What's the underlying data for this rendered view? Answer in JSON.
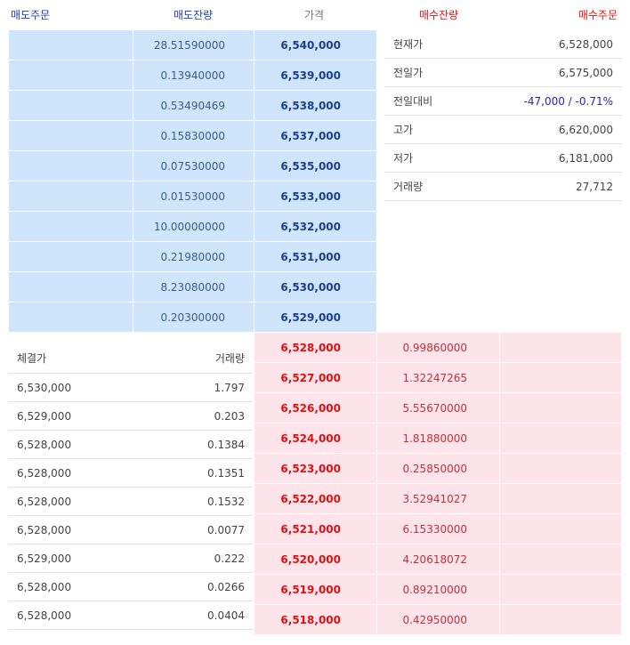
{
  "headers": {
    "sell_order": "매도주문",
    "sell_qty": "매도잔량",
    "price": "가격",
    "buy_qty": "매수잔량",
    "buy_order": "매수주문"
  },
  "asks": [
    {
      "qty": "28.51590000",
      "price": "6,540,000"
    },
    {
      "qty": "0.13940000",
      "price": "6,539,000"
    },
    {
      "qty": "0.53490469",
      "price": "6,538,000"
    },
    {
      "qty": "0.15830000",
      "price": "6,537,000"
    },
    {
      "qty": "0.07530000",
      "price": "6,535,000"
    },
    {
      "qty": "0.01530000",
      "price": "6,533,000"
    },
    {
      "qty": "10.00000000",
      "price": "6,532,000"
    },
    {
      "qty": "0.21980000",
      "price": "6,531,000"
    },
    {
      "qty": "8.23080000",
      "price": "6,530,000"
    },
    {
      "qty": "0.20300000",
      "price": "6,529,000"
    }
  ],
  "bids": [
    {
      "price": "6,528,000",
      "qty": "0.99860000"
    },
    {
      "price": "6,527,000",
      "qty": "1.32247265"
    },
    {
      "price": "6,526,000",
      "qty": "5.55670000"
    },
    {
      "price": "6,524,000",
      "qty": "1.81880000"
    },
    {
      "price": "6,523,000",
      "qty": "0.25850000"
    },
    {
      "price": "6,522,000",
      "qty": "3.52941027"
    },
    {
      "price": "6,521,000",
      "qty": "6.15330000"
    },
    {
      "price": "6,520,000",
      "qty": "4.20618072"
    },
    {
      "price": "6,519,000",
      "qty": "0.89210000"
    },
    {
      "price": "6,518,000",
      "qty": "0.42950000"
    }
  ],
  "info": [
    {
      "label": "현재가",
      "value": "6,528,000"
    },
    {
      "label": "전일가",
      "value": "6,575,000"
    },
    {
      "label": "전일대비",
      "value": "-47,000 / -0.71%"
    },
    {
      "label": "고가",
      "value": "6,620,000"
    },
    {
      "label": "저가",
      "value": "6,181,000"
    },
    {
      "label": "거래량",
      "value": "27,712"
    }
  ],
  "trades": {
    "price_header": "체결가",
    "volume_header": "거래량",
    "rows": [
      {
        "price": "6,530,000",
        "volume": "1.797"
      },
      {
        "price": "6,529,000",
        "volume": "0.203"
      },
      {
        "price": "6,528,000",
        "volume": "0.1384"
      },
      {
        "price": "6,528,000",
        "volume": "0.1351"
      },
      {
        "price": "6,528,000",
        "volume": "0.1532"
      },
      {
        "price": "6,528,000",
        "volume": "0.0077"
      },
      {
        "price": "6,529,000",
        "volume": "0.222"
      },
      {
        "price": "6,528,000",
        "volume": "0.0266"
      },
      {
        "price": "6,528,000",
        "volume": "0.0404"
      }
    ]
  },
  "colors": {
    "ask_bg": "#cfe5fb",
    "bid_bg": "#fce4ea",
    "sell_text": "#1a3fb5",
    "buy_text": "#e01010",
    "change_negative": "#2323d6"
  }
}
